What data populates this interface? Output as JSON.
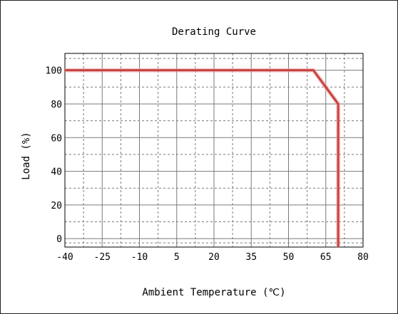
{
  "chart_data": {
    "type": "line",
    "title": "Derating Curve",
    "xlabel": "Ambient Temperature (℃)",
    "ylabel": "Load (%)",
    "xlim": [
      -40,
      80
    ],
    "ylim": [
      -5,
      110
    ],
    "x_ticks": [
      -40,
      -25,
      -10,
      5,
      20,
      35,
      50,
      65,
      80
    ],
    "y_ticks": [
      0,
      20,
      40,
      60,
      80,
      100
    ],
    "grid": true,
    "series": [
      {
        "x": [
          -40,
          60,
          70,
          70
        ],
        "y": [
          100,
          100,
          80,
          -5
        ]
      }
    ],
    "colors": {
      "line": "#c8413f",
      "grid": "#7a7a7a",
      "axis": "#000000"
    }
  }
}
